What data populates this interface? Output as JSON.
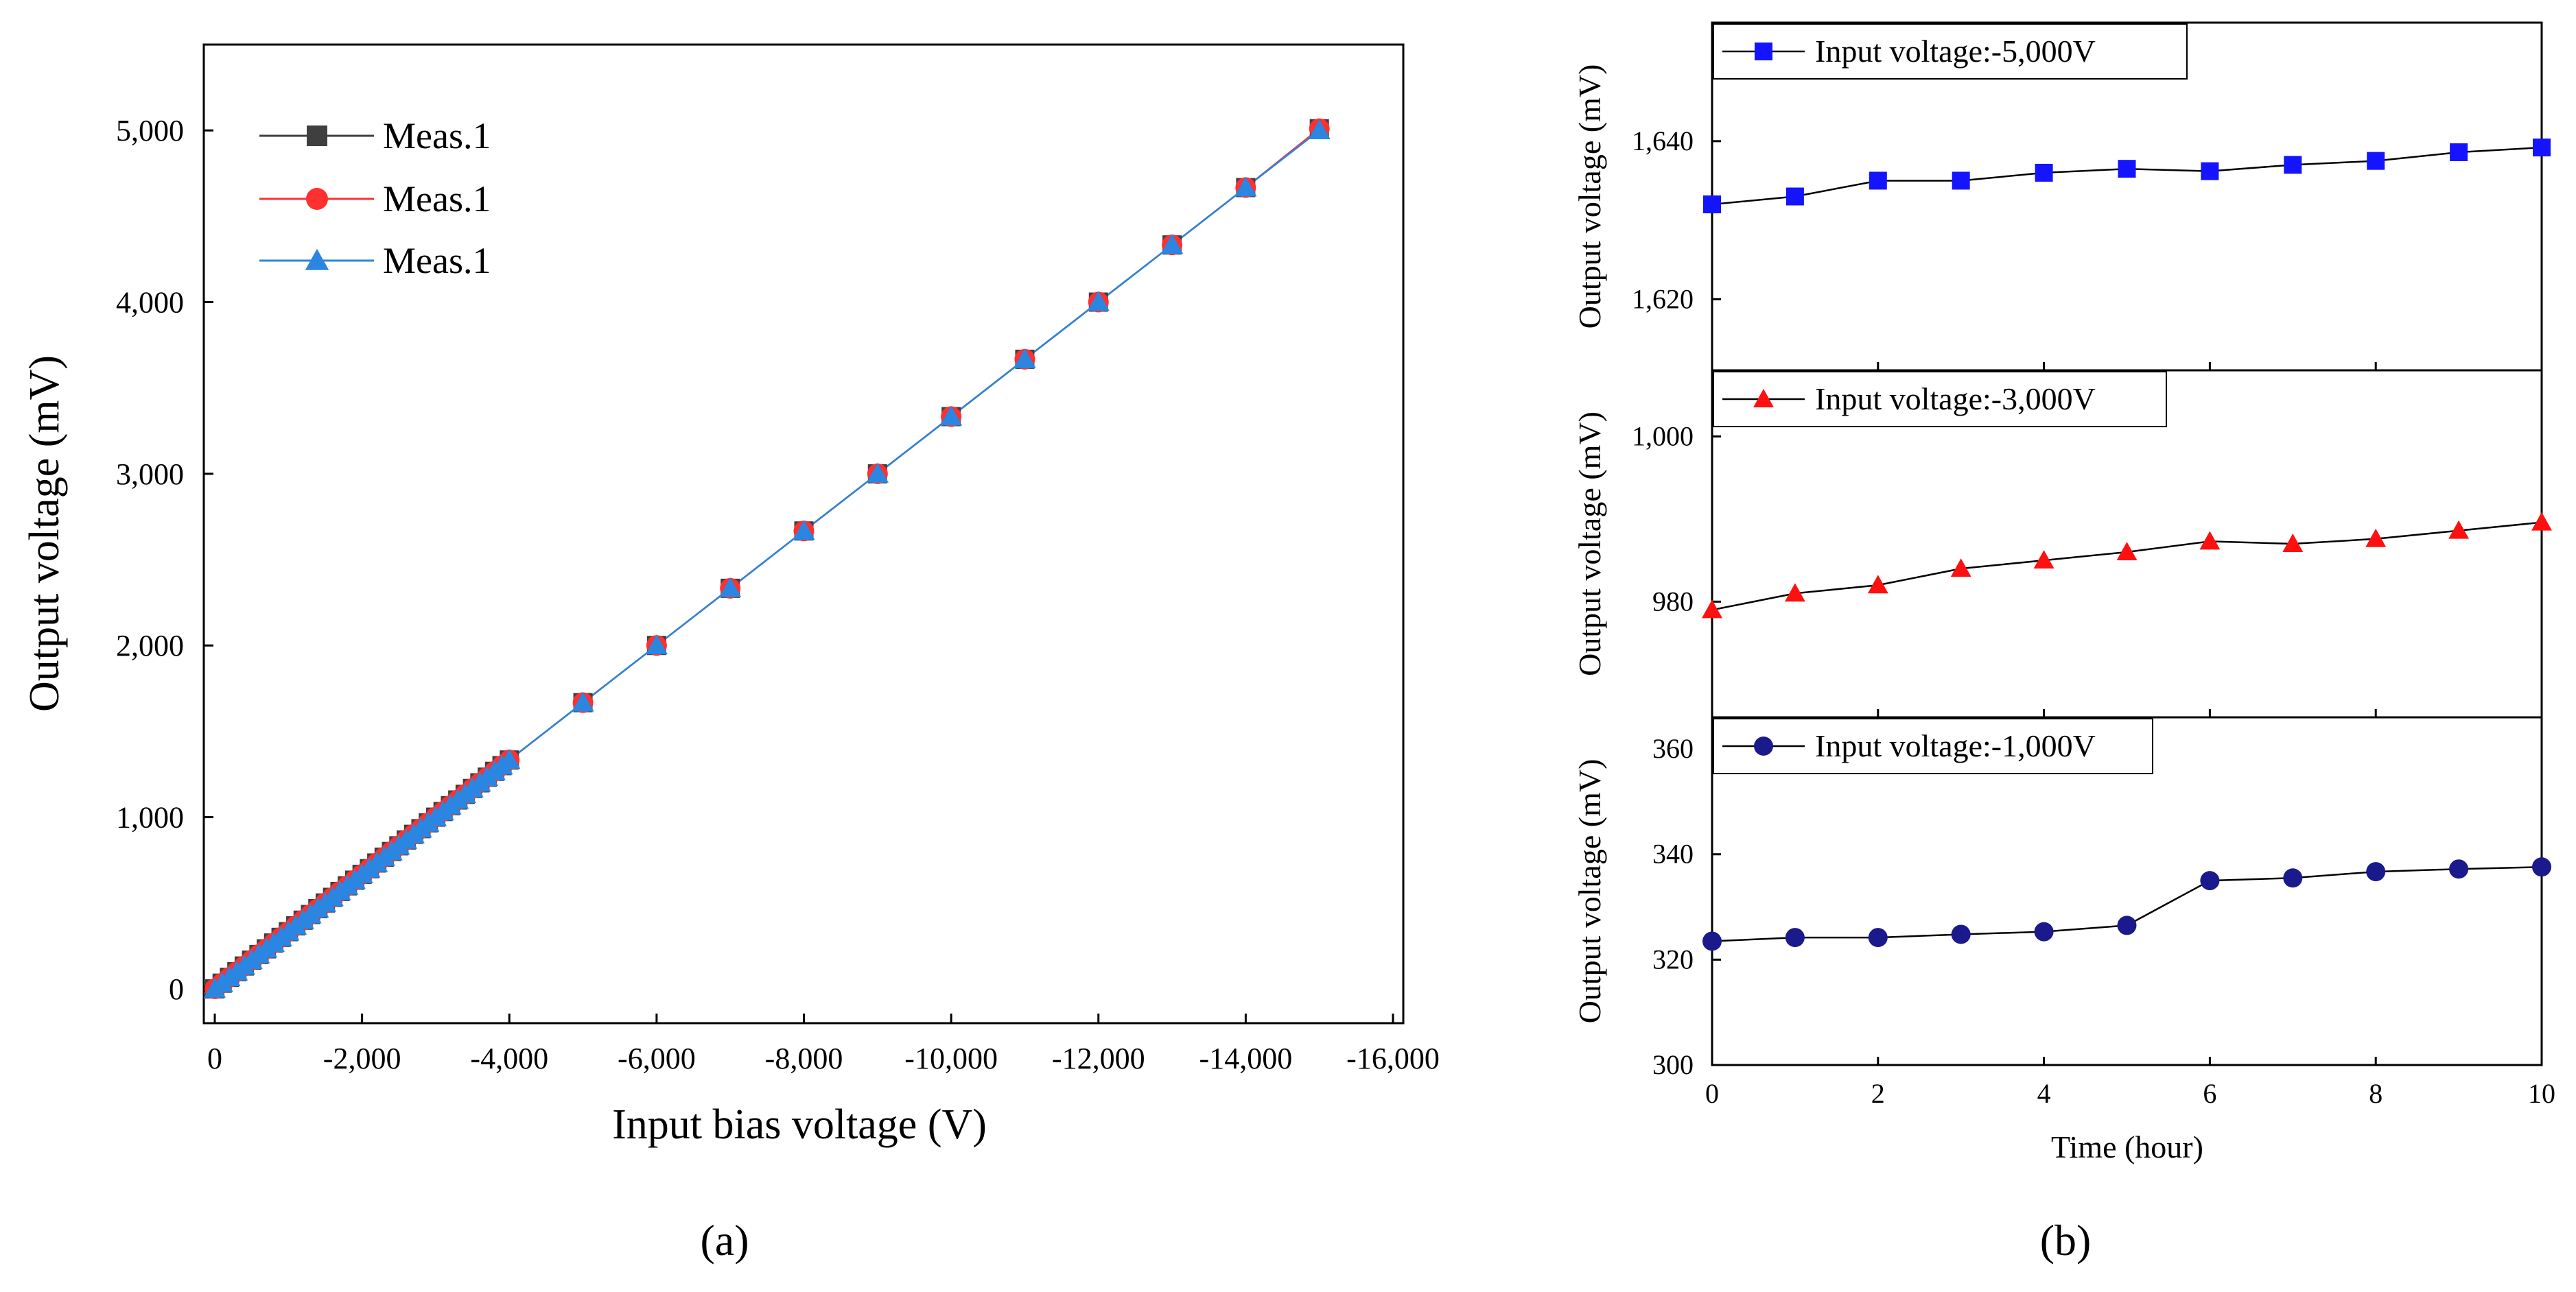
{
  "chart_data": [
    {
      "panel": "a",
      "panel_label": "(a)",
      "type": "line",
      "xlabel": "Input bias voltage (V)",
      "ylabel": "Output voltage (mV)",
      "xlim": [
        0,
        -16000
      ],
      "ylim": [
        -200,
        5500
      ],
      "xticks": [
        {
          "value": 0,
          "label": "0"
        },
        {
          "value": -2000,
          "label": "-2,000"
        },
        {
          "value": -4000,
          "label": "-4,000"
        },
        {
          "value": -6000,
          "label": "-6,000"
        },
        {
          "value": -8000,
          "label": "-8,000"
        },
        {
          "value": -10000,
          "label": "-10,000"
        },
        {
          "value": -12000,
          "label": "-12,000"
        },
        {
          "value": -14000,
          "label": "-14,000"
        },
        {
          "value": -16000,
          "label": "-16,000"
        }
      ],
      "yticks": [
        {
          "value": 0,
          "label": "0"
        },
        {
          "value": 1000,
          "label": "1,000"
        },
        {
          "value": 2000,
          "label": "2,000"
        },
        {
          "value": 3000,
          "label": "3,000"
        },
        {
          "value": 4000,
          "label": "4,000"
        },
        {
          "value": 5000,
          "label": "5,000"
        }
      ],
      "legend": "top-left",
      "x": [
        0,
        -100,
        -200,
        -300,
        -400,
        -500,
        -600,
        -700,
        -800,
        -900,
        -1000,
        -1100,
        -1200,
        -1300,
        -1400,
        -1500,
        -1600,
        -1700,
        -1800,
        -1900,
        -2000,
        -2100,
        -2200,
        -2300,
        -2400,
        -2500,
        -2600,
        -2700,
        -2800,
        -2900,
        -3000,
        -3100,
        -3200,
        -3300,
        -3400,
        -3500,
        -3600,
        -3700,
        -3800,
        -3900,
        -4000,
        -5000,
        -6000,
        -7000,
        -8000,
        -9000,
        -10000,
        -11000,
        -12000,
        -13000,
        -14000,
        -15000
      ],
      "series": [
        {
          "name": "Meas.1",
          "color": "#3f3f3f",
          "marker": "square",
          "values": [
            0,
            33,
            67,
            100,
            133,
            167,
            200,
            233,
            267,
            300,
            333,
            367,
            400,
            433,
            467,
            500,
            533,
            567,
            600,
            633,
            667,
            700,
            733,
            767,
            800,
            833,
            867,
            900,
            933,
            967,
            1000,
            1033,
            1067,
            1100,
            1133,
            1167,
            1200,
            1233,
            1267,
            1300,
            1333,
            1667,
            2000,
            2333,
            2667,
            3000,
            3333,
            3667,
            4000,
            4333,
            4667,
            5010
          ]
        },
        {
          "name": "Meas.1",
          "color": "#ff3030",
          "marker": "circle",
          "values": [
            0,
            33,
            67,
            100,
            133,
            167,
            200,
            233,
            267,
            300,
            333,
            367,
            400,
            433,
            467,
            500,
            533,
            567,
            600,
            633,
            667,
            700,
            733,
            767,
            800,
            833,
            867,
            900,
            933,
            967,
            1000,
            1033,
            1067,
            1100,
            1133,
            1167,
            1200,
            1233,
            1267,
            1300,
            1333,
            1667,
            2000,
            2333,
            2667,
            3000,
            3333,
            3667,
            4000,
            4333,
            4667,
            5010
          ]
        },
        {
          "name": "Meas.1",
          "color": "#2a86e0",
          "marker": "triangle",
          "values": [
            0,
            33,
            67,
            100,
            133,
            167,
            200,
            233,
            267,
            300,
            333,
            367,
            400,
            433,
            467,
            500,
            533,
            567,
            600,
            633,
            667,
            700,
            733,
            767,
            800,
            833,
            867,
            900,
            933,
            967,
            1000,
            1033,
            1067,
            1100,
            1133,
            1167,
            1200,
            1233,
            1267,
            1300,
            1333,
            1667,
            2000,
            2333,
            2667,
            3000,
            3333,
            3667,
            4000,
            4333,
            4667,
            5000
          ]
        }
      ]
    },
    {
      "panel": "b",
      "panel_label": "(b)",
      "type": "line",
      "xlabel": "Time (hour)",
      "x": [
        0,
        1,
        2,
        3,
        4,
        5,
        6,
        7,
        8,
        9,
        10
      ],
      "xlim": [
        0,
        10
      ],
      "xticks": [
        {
          "value": 0,
          "label": "0"
        },
        {
          "value": 2,
          "label": "2"
        },
        {
          "value": 4,
          "label": "4"
        },
        {
          "value": 6,
          "label": "6"
        },
        {
          "value": 8,
          "label": "8"
        },
        {
          "value": 10,
          "label": "10"
        }
      ],
      "subplots": [
        {
          "ylabel": "Output voltage (mV)",
          "ylim": [
            1611,
            1655
          ],
          "yticks": [
            {
              "value": 1620,
              "label": "1,620"
            },
            {
              "value": 1640,
              "label": "1,640"
            }
          ],
          "legend": "top-left",
          "series": [
            {
              "name": "Input voltage:-5,000V",
              "color": "#1414ff",
              "marker": "square",
              "values": [
                1632,
                1633,
                1635,
                1635,
                1636,
                1636.5,
                1636.2,
                1637,
                1637.5,
                1638.6,
                1639.2
              ]
            }
          ]
        },
        {
          "ylabel": "Output voltage (mV)",
          "ylim": [
            966,
            1008
          ],
          "yticks": [
            {
              "value": 980,
              "label": "980"
            },
            {
              "value": 1000,
              "label": "1,000"
            }
          ],
          "legend": "top-left",
          "series": [
            {
              "name": "Input voltage:-3,000V",
              "color": "#ff1010",
              "marker": "triangle",
              "values": [
                979,
                981,
                982,
                984,
                985,
                986,
                987.3,
                987,
                987.6,
                988.6,
                989.6
              ]
            }
          ]
        },
        {
          "ylabel": "Output voltage (mV)",
          "ylim": [
            300,
            366
          ],
          "yticks": [
            {
              "value": 300,
              "label": "300"
            },
            {
              "value": 320,
              "label": "320"
            },
            {
              "value": 340,
              "label": "340"
            },
            {
              "value": 360,
              "label": "360"
            }
          ],
          "legend": "top-left",
          "series": [
            {
              "name": "Input voltage:-1,000V",
              "color": "#1a1a8c",
              "marker": "circle",
              "values": [
                323.5,
                324.2,
                324.2,
                324.8,
                325.3,
                326.5,
                335,
                335.5,
                336.7,
                337.2,
                337.6
              ]
            }
          ]
        }
      ]
    }
  ]
}
